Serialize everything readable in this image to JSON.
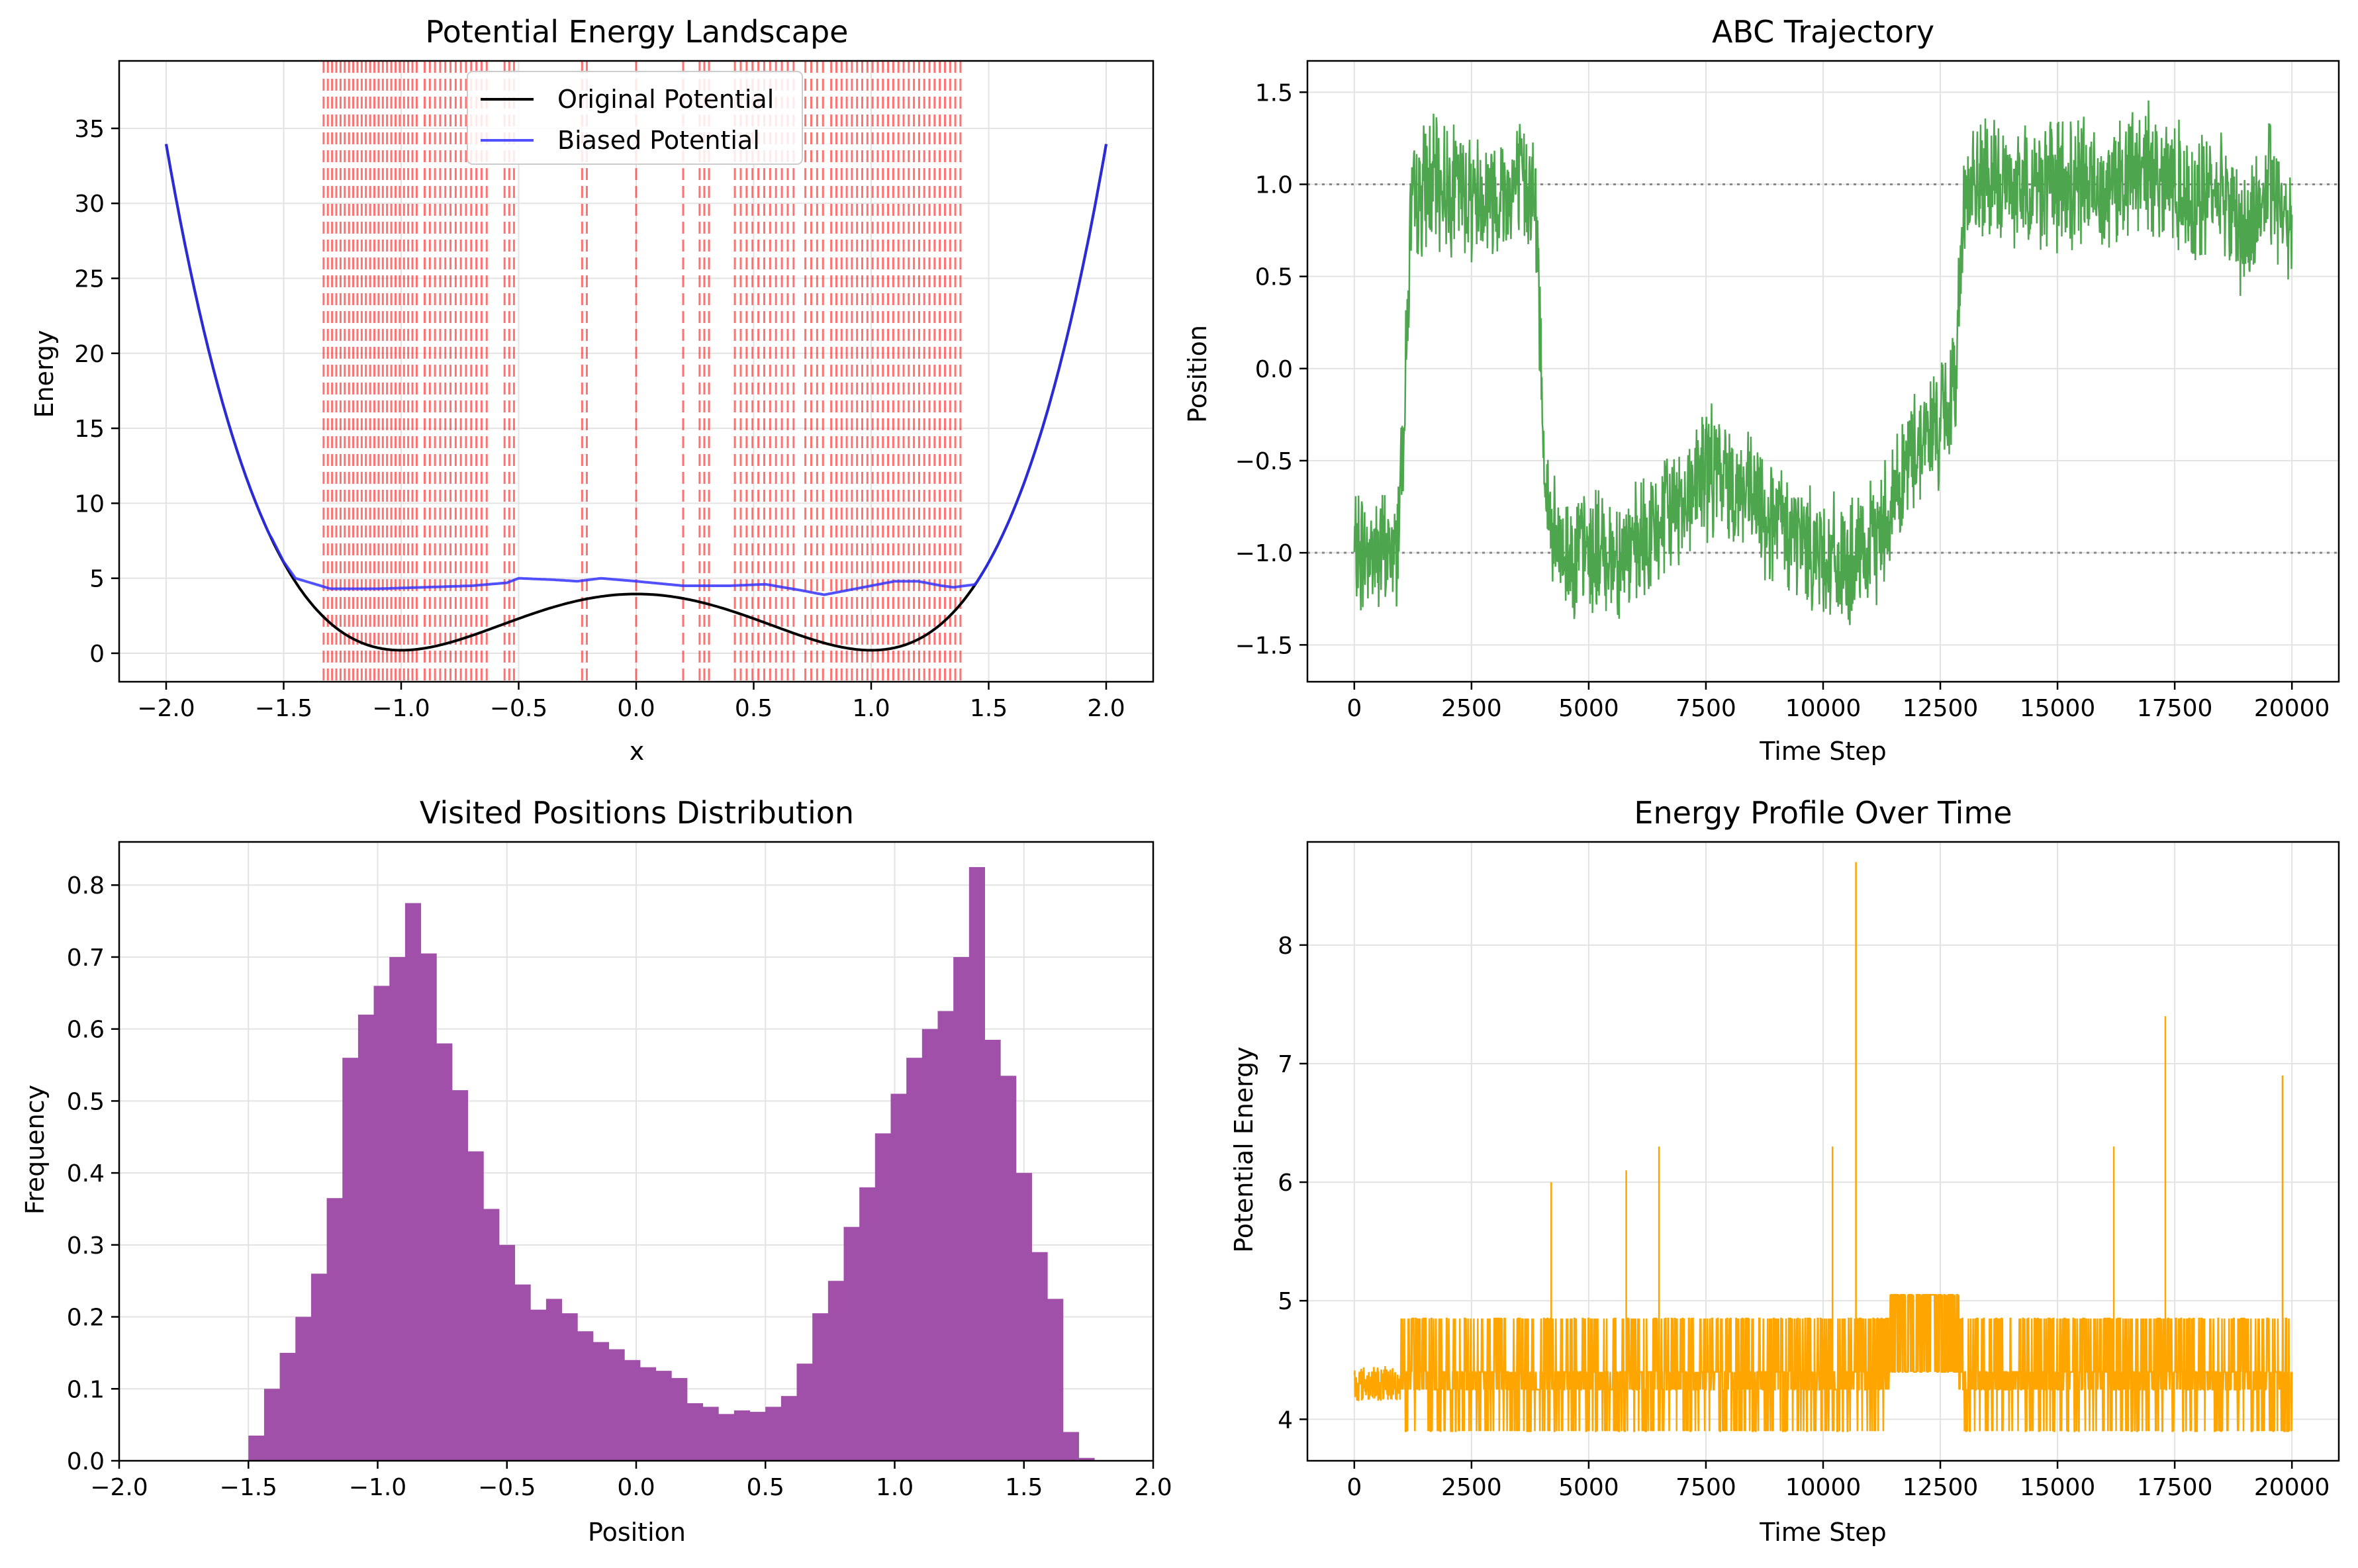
{
  "chart_data": [
    {
      "type": "line",
      "title": "Potential Energy Landscape",
      "xlabel": "x",
      "ylabel": "Energy",
      "xlim": [
        -2.2,
        2.2
      ],
      "ylim": [
        -1.9,
        39.5
      ],
      "xticks": [
        -2.0,
        -1.5,
        -1.0,
        -0.5,
        0.0,
        0.5,
        1.0,
        1.5,
        2.0
      ],
      "xtick_labels": [
        "−2.0",
        "−1.5",
        "−1.0",
        "−0.5",
        "0.0",
        "0.5",
        "1.0",
        "1.5",
        "2.0"
      ],
      "yticks": [
        0,
        5,
        10,
        15,
        20,
        25,
        30,
        35
      ],
      "ytick_labels": [
        "0",
        "5",
        "10",
        "15",
        "20",
        "25",
        "30",
        "35"
      ],
      "grid": true,
      "legend": "upper center",
      "series": [
        {
          "name": "Original Potential",
          "color": "#000000",
          "style": "solid",
          "function": "4*(x^2-1)^2 + 0.25x?",
          "x": [
            -2.0,
            -1.5,
            -1.0,
            -0.5,
            0.0,
            0.5,
            1.0,
            1.5,
            2.0
          ],
          "y": [
            37.5,
            6.1,
            0.2,
            2.4,
            4.1,
            2.4,
            0.2,
            6.1,
            37.5
          ]
        },
        {
          "name": "Biased Potential",
          "color": "#3333ff",
          "style": "solid",
          "x": [
            -2.0,
            -1.6,
            -1.5,
            -1.45,
            -1.3,
            -1.1,
            -0.9,
            -0.7,
            -0.55,
            -0.5,
            -0.35,
            -0.25,
            -0.15,
            0.0,
            0.2,
            0.4,
            0.55,
            0.7,
            0.8,
            0.9,
            1.0,
            1.1,
            1.2,
            1.3,
            1.35,
            1.45,
            1.5,
            1.6,
            2.0
          ],
          "y": [
            37.5,
            9.2,
            6.1,
            5.0,
            4.3,
            4.3,
            4.4,
            4.5,
            4.7,
            5.0,
            4.9,
            4.8,
            5.0,
            4.8,
            4.5,
            4.5,
            4.6,
            4.2,
            3.9,
            4.2,
            4.5,
            4.8,
            4.8,
            4.5,
            4.4,
            4.6,
            5.1,
            7.5,
            37.5
          ]
        }
      ],
      "bias_centers_color": "#ff0000"
    },
    {
      "type": "line",
      "title": "ABC Trajectory",
      "xlabel": "Time Step",
      "ylabel": "Position",
      "xlim": [
        -1000,
        21000
      ],
      "ylim": [
        -1.7,
        1.67
      ],
      "xticks": [
        0,
        2500,
        5000,
        7500,
        10000,
        12500,
        15000,
        17500,
        20000
      ],
      "xtick_labels": [
        "0",
        "2500",
        "5000",
        "7500",
        "10000",
        "12500",
        "15000",
        "17500",
        "20000"
      ],
      "yticks": [
        -1.5,
        -1.0,
        -0.5,
        0.0,
        0.5,
        1.0,
        1.5
      ],
      "ytick_labels": [
        "−1.5",
        "−1.0",
        "−0.5",
        "0.0",
        "0.5",
        "1.0",
        "1.5"
      ],
      "reference_lines": [
        1.0,
        -1.0
      ],
      "grid": true,
      "series": [
        {
          "name": "",
          "color": "#4da64d",
          "x": [
            0,
            500,
            900,
            1000,
            1100,
            1200,
            1500,
            2000,
            2500,
            3000,
            3500,
            3800,
            3900,
            4000,
            4100,
            4300,
            5000,
            6000,
            7000,
            7500,
            8000,
            9000,
            10000,
            10500,
            11000,
            11500,
            12000,
            12500,
            12800,
            12900,
            13000,
            13500,
            14000,
            15000,
            16000,
            17000,
            17500,
            18000,
            18500,
            19000,
            19500,
            20000
          ],
          "y": [
            -1.0,
            -1.0,
            -1.0,
            -0.5,
            0.0,
            0.8,
            1.0,
            1.0,
            0.95,
            0.95,
            1.0,
            1.0,
            0.7,
            -0.1,
            -0.7,
            -1.0,
            -1.0,
            -1.0,
            -0.7,
            -0.55,
            -0.6,
            -0.85,
            -1.0,
            -1.1,
            -1.0,
            -0.7,
            -0.4,
            -0.3,
            -0.15,
            0.4,
            0.95,
            1.0,
            1.0,
            1.0,
            1.0,
            1.1,
            1.0,
            0.9,
            1.0,
            0.7,
            1.0,
            0.8
          ]
        }
      ]
    },
    {
      "type": "bar",
      "title": "Visited Positions Distribution",
      "xlabel": "Position",
      "ylabel": "Frequency",
      "xlim": [
        -2.0,
        2.0
      ],
      "ylim": [
        0,
        0.86
      ],
      "xticks": [
        -2.0,
        -1.5,
        -1.0,
        -0.5,
        0.0,
        0.5,
        1.0,
        1.5,
        2.0
      ],
      "xtick_labels": [
        "−2.0",
        "−1.5",
        "−1.0",
        "−0.5",
        "0.0",
        "0.5",
        "1.0",
        "1.5",
        "2.0"
      ],
      "yticks": [
        0.0,
        0.1,
        0.2,
        0.3,
        0.4,
        0.5,
        0.6,
        0.7,
        0.8
      ],
      "ytick_labels": [
        "0.0",
        "0.1",
        "0.2",
        "0.3",
        "0.4",
        "0.5",
        "0.6",
        "0.7",
        "0.8"
      ],
      "grid": true,
      "color": "#a050a8",
      "bin_start": -1.5,
      "bin_width": 0.0606,
      "values": [
        0.035,
        0.1,
        0.15,
        0.2,
        0.26,
        0.365,
        0.56,
        0.62,
        0.66,
        0.7,
        0.775,
        0.705,
        0.58,
        0.515,
        0.43,
        0.35,
        0.3,
        0.245,
        0.21,
        0.225,
        0.205,
        0.18,
        0.165,
        0.155,
        0.14,
        0.13,
        0.125,
        0.115,
        0.08,
        0.075,
        0.065,
        0.07,
        0.068,
        0.075,
        0.09,
        0.135,
        0.205,
        0.25,
        0.325,
        0.38,
        0.455,
        0.51,
        0.56,
        0.6,
        0.625,
        0.7,
        0.825,
        0.585,
        0.535,
        0.4,
        0.29,
        0.225,
        0.04,
        0.004
      ]
    },
    {
      "type": "line",
      "title": "Energy Profile Over Time",
      "xlabel": "Time Step",
      "ylabel": "Potential Energy",
      "xlim": [
        -1000,
        21000
      ],
      "ylim": [
        3.65,
        8.87
      ],
      "xticks": [
        0,
        2500,
        5000,
        7500,
        10000,
        12500,
        15000,
        17500,
        20000
      ],
      "xtick_labels": [
        "0",
        "2500",
        "5000",
        "7500",
        "10000",
        "12500",
        "15000",
        "17500",
        "20000"
      ],
      "yticks": [
        4,
        5,
        6,
        7,
        8
      ],
      "ytick_labels": [
        "4",
        "5",
        "6",
        "7",
        "8"
      ],
      "grid": true,
      "series": [
        {
          "name": "",
          "color": "#ffa500",
          "x": [
            0,
            1000,
            2000,
            3000,
            4000,
            4200,
            5000,
            5800,
            6500,
            7000,
            8000,
            9000,
            10000,
            10200,
            10700,
            11000,
            11500,
            12000,
            12500,
            13000,
            13500,
            14000,
            15000,
            16000,
            16200,
            17000,
            17300,
            18000,
            19000,
            19800,
            20000
          ],
          "y": [
            4.3,
            4.6,
            4.5,
            4.4,
            4.6,
            6.0,
            4.4,
            6.1,
            6.3,
            4.4,
            4.5,
            4.5,
            4.4,
            6.3,
            8.7,
            4.4,
            5.0,
            5.0,
            5.0,
            4.6,
            4.4,
            4.5,
            4.6,
            4.4,
            6.3,
            4.6,
            7.4,
            4.5,
            4.4,
            6.9,
            4.4
          ]
        }
      ]
    }
  ]
}
